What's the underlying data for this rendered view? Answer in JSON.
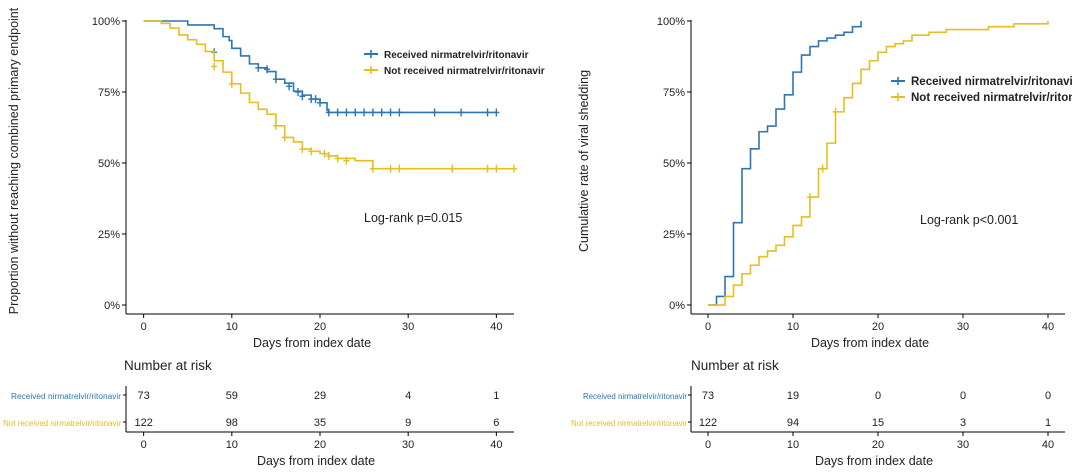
{
  "colors": {
    "treated": "#2E75B6",
    "untreated": "#E6BE1E",
    "axis": "#000000",
    "text": "#222222"
  },
  "chart_data": [
    {
      "type": "line",
      "id": "left",
      "title": "",
      "ylabel": "Proportion without reaching combined primary endpoint",
      "xlabel": "Days from index date",
      "xlim": [
        -2,
        42
      ],
      "ylim": [
        0,
        1
      ],
      "xticks": [
        0,
        10,
        20,
        30,
        40
      ],
      "yticks": [
        0,
        0.25,
        0.5,
        0.75,
        1
      ],
      "ytick_labels": [
        "0%",
        "25%",
        "50%",
        "75%",
        "100%"
      ],
      "annotation": "Log-rank  p=0.015",
      "legend": [
        "Received nirmatrelvir/ritonavir",
        "Not received nirmatrelvir/ritonavir"
      ],
      "series": [
        {
          "name": "Received nirmatrelvir/ritonavir",
          "steps": [
            [
              0,
              1
            ],
            [
              5,
              0.986
            ],
            [
              8,
              0.973
            ],
            [
              9,
              0.945
            ],
            [
              9.7,
              0.931
            ],
            [
              10,
              0.904
            ],
            [
              11,
              0.877
            ],
            [
              12,
              0.849
            ],
            [
              13,
              0.835
            ],
            [
              14,
              0.822
            ],
            [
              15,
              0.795
            ],
            [
              16,
              0.781
            ],
            [
              17,
              0.753
            ],
            [
              18,
              0.739
            ],
            [
              19,
              0.725
            ],
            [
              20,
              0.712
            ],
            [
              20.8,
              0.685
            ],
            [
              21,
              0.678
            ],
            [
              40,
              0.678
            ]
          ],
          "censors": [
            [
              8,
              0.89
            ],
            [
              13,
              0.835
            ],
            [
              14,
              0.83
            ],
            [
              15,
              0.795
            ],
            [
              16.5,
              0.77
            ],
            [
              17.5,
              0.75
            ],
            [
              18,
              0.735
            ],
            [
              19,
              0.725
            ],
            [
              19.5,
              0.725
            ],
            [
              20,
              0.712
            ],
            [
              21,
              0.678
            ],
            [
              22,
              0.678
            ],
            [
              23,
              0.678
            ],
            [
              24,
              0.678
            ],
            [
              25,
              0.678
            ],
            [
              26,
              0.678
            ],
            [
              27,
              0.678
            ],
            [
              28,
              0.678
            ],
            [
              29,
              0.678
            ],
            [
              33,
              0.678
            ],
            [
              36,
              0.678
            ],
            [
              39,
              0.678
            ],
            [
              40,
              0.678
            ]
          ]
        },
        {
          "name": "Not received nirmatrelvir/ritonavir",
          "steps": [
            [
              0,
              1
            ],
            [
              2,
              0.992
            ],
            [
              3,
              0.975
            ],
            [
              4,
              0.951
            ],
            [
              5,
              0.934
            ],
            [
              6,
              0.918
            ],
            [
              7,
              0.893
            ],
            [
              8,
              0.86
            ],
            [
              9,
              0.82
            ],
            [
              10,
              0.779
            ],
            [
              11,
              0.746
            ],
            [
              12,
              0.713
            ],
            [
              13,
              0.689
            ],
            [
              14,
              0.672
            ],
            [
              15,
              0.631
            ],
            [
              16,
              0.59
            ],
            [
              17,
              0.574
            ],
            [
              18,
              0.549
            ],
            [
              19,
              0.541
            ],
            [
              20,
              0.533
            ],
            [
              21,
              0.525
            ],
            [
              22,
              0.516
            ],
            [
              24,
              0.508
            ],
            [
              26,
              0.48
            ],
            [
              42,
              0.48
            ]
          ],
          "censors": [
            [
              8,
              0.84
            ],
            [
              10,
              0.779
            ],
            [
              15,
              0.631
            ],
            [
              16,
              0.59
            ],
            [
              18,
              0.549
            ],
            [
              19,
              0.541
            ],
            [
              20.5,
              0.533
            ],
            [
              21,
              0.525
            ],
            [
              22,
              0.516
            ],
            [
              23,
              0.508
            ],
            [
              26,
              0.48
            ],
            [
              28,
              0.48
            ],
            [
              29,
              0.48
            ],
            [
              35,
              0.48
            ],
            [
              39,
              0.48
            ],
            [
              40,
              0.48
            ],
            [
              42,
              0.48
            ]
          ]
        }
      ],
      "risk_table": {
        "title": "Number at risk",
        "xlabel": "Days from index date",
        "xticks": [
          0,
          10,
          20,
          30,
          40
        ],
        "rows": [
          {
            "label": "Received nirmatrelvir/ritonavir",
            "values": [
              "73",
              "59",
              "29",
              "4",
              "1"
            ]
          },
          {
            "label": "Not received nirmatrelvir/ritonavir",
            "values": [
              "122",
              "98",
              "35",
              "9",
              "6"
            ]
          }
        ]
      }
    },
    {
      "type": "line",
      "id": "right",
      "title": "",
      "ylabel": "Cumulative rate of viral shedding",
      "xlabel": "Days from index date",
      "xlim": [
        -2,
        42
      ],
      "ylim": [
        0,
        1
      ],
      "xticks": [
        0,
        10,
        20,
        30,
        40
      ],
      "yticks": [
        0,
        0.25,
        0.5,
        0.75,
        1
      ],
      "ytick_labels": [
        "0%",
        "25%",
        "50%",
        "75%",
        "100%"
      ],
      "annotation": "Log-rank  p<0.001",
      "legend": [
        "Received nirmatrelvir/ritonavir",
        "Not received nirmatrelvir/ritonavir"
      ],
      "series": [
        {
          "name": "Received nirmatrelvir/ritonavir",
          "steps": [
            [
              0,
              0
            ],
            [
              1,
              0.03
            ],
            [
              2,
              0.1
            ],
            [
              3,
              0.29
            ],
            [
              4,
              0.48
            ],
            [
              5,
              0.55
            ],
            [
              6,
              0.61
            ],
            [
              7,
              0.63
            ],
            [
              8,
              0.69
            ],
            [
              9,
              0.74
            ],
            [
              10,
              0.82
            ],
            [
              11,
              0.88
            ],
            [
              12,
              0.91
            ],
            [
              13,
              0.93
            ],
            [
              14,
              0.94
            ],
            [
              15,
              0.95
            ],
            [
              16,
              0.96
            ],
            [
              17,
              0.98
            ],
            [
              18,
              1
            ]
          ],
          "censors": []
        },
        {
          "name": "Not received nirmatrelvir/ritonavir",
          "steps": [
            [
              0,
              0
            ],
            [
              2,
              0.03
            ],
            [
              3,
              0.07
            ],
            [
              4,
              0.11
            ],
            [
              5,
              0.14
            ],
            [
              6,
              0.17
            ],
            [
              7,
              0.19
            ],
            [
              8,
              0.21
            ],
            [
              9,
              0.24
            ],
            [
              10,
              0.28
            ],
            [
              11,
              0.31
            ],
            [
              12,
              0.38
            ],
            [
              13,
              0.48
            ],
            [
              14,
              0.57
            ],
            [
              15,
              0.68
            ],
            [
              16,
              0.73
            ],
            [
              17,
              0.78
            ],
            [
              18,
              0.83
            ],
            [
              19,
              0.86
            ],
            [
              20,
              0.89
            ],
            [
              21,
              0.91
            ],
            [
              22,
              0.92
            ],
            [
              23,
              0.93
            ],
            [
              24,
              0.95
            ],
            [
              26,
              0.96
            ],
            [
              28,
              0.97
            ],
            [
              33,
              0.98
            ],
            [
              36,
              0.99
            ],
            [
              40,
              1
            ]
          ],
          "censors": [
            [
              12,
              0.38
            ],
            [
              13.5,
              0.48
            ],
            [
              15,
              0.68
            ]
          ]
        }
      ],
      "risk_table": {
        "title": "Number at risk",
        "xlabel": "Days from index date",
        "xticks": [
          0,
          10,
          20,
          30,
          40
        ],
        "rows": [
          {
            "label": "Received nirmatrelvir/ritonavir",
            "values": [
              "73",
              "19",
              "0",
              "0",
              "0"
            ]
          },
          {
            "label": "Not received nirmatrelvir/ritonavir",
            "values": [
              "122",
              "94",
              "15",
              "3",
              "1"
            ]
          }
        ]
      }
    }
  ]
}
